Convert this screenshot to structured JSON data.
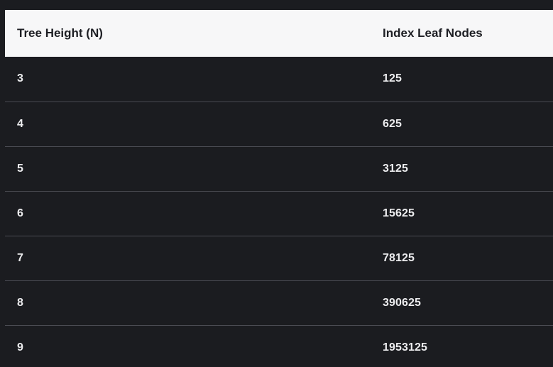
{
  "table": {
    "headers": [
      "Tree Height (N)",
      "Index Leaf Nodes"
    ],
    "rows": [
      [
        "3",
        "125"
      ],
      [
        "4",
        "625"
      ],
      [
        "5",
        "3125"
      ],
      [
        "6",
        "15625"
      ],
      [
        "7",
        "78125"
      ],
      [
        "8",
        "390625"
      ],
      [
        "9",
        "1953125"
      ]
    ]
  },
  "colors": {
    "background": "#1b1c20",
    "header_background": "#f7f7f8",
    "header_text": "#1e1f24",
    "cell_text": "#ececee",
    "row_divider": "#4a4b52"
  }
}
